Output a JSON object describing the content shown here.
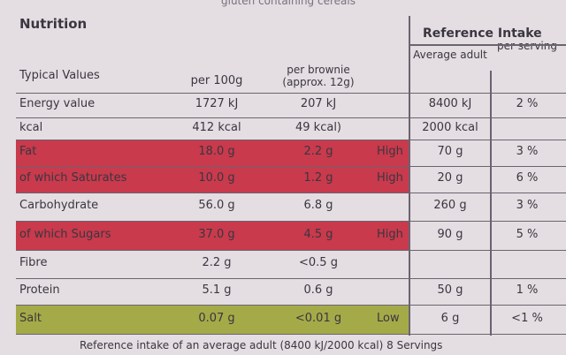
{
  "top_note": "gluten containing cereals",
  "title": "Nutrition",
  "ri_title": "Reference Intake",
  "columns": {
    "label": "Typical Values",
    "per_100g": "per 100g",
    "per_serving": "per brownie (approx. 12g)",
    "ri": "Average adult",
    "ri_pct": "per serving"
  },
  "rows": [
    {
      "name": "Energy value",
      "per_100g": "1727 kJ",
      "per_serving": "207 kJ",
      "ri": "8400 kJ",
      "ri_pct": "2 %"
    },
    {
      "name": "kcal",
      "per_100g": "412 kcal",
      "per_serving": "49 kcal)",
      "ri": "2000 kcal"
    },
    {
      "name": "Fat",
      "per_100g": "18.0 g",
      "per_serving": "2.2 g",
      "level": "High",
      "ri": "70 g",
      "ri_pct": "3 %"
    },
    {
      "name": "of which Saturates",
      "per_100g": "10.0 g",
      "per_serving": "1.2 g",
      "level": "High",
      "ri": "20 g",
      "ri_pct": "6 %"
    },
    {
      "name": "Carbohydrate",
      "per_100g": "56.0 g",
      "per_serving": "6.8 g",
      "ri": "260 g",
      "ri_pct": "3 %"
    },
    {
      "name": "of which Sugars",
      "per_100g": "37.0 g",
      "per_serving": "4.5 g",
      "level": "High",
      "ri": "90 g",
      "ri_pct": "5 %"
    },
    {
      "name": "Fibre",
      "per_100g": "2.2 g",
      "per_serving": "<0.5 g"
    },
    {
      "name": "Protein",
      "per_100g": "5.1 g",
      "per_serving": "0.6 g",
      "ri": "50 g",
      "ri_pct": "1 %"
    },
    {
      "name": "Salt",
      "per_100g": "0.07 g",
      "per_serving": "<0.01 g",
      "level": "Low",
      "ri": "6 g",
      "ri_pct": "<1 %"
    }
  ],
  "footer": "Reference intake of an average adult (8400 kJ/2000 kcal) 8 Servings"
}
